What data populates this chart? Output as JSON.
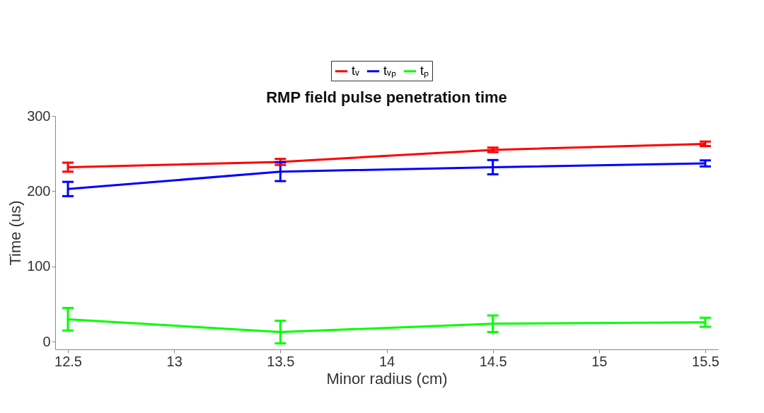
{
  "chart_data": {
    "type": "line",
    "title": "RMP field pulse penetration time",
    "xlabel": "Minor radius (cm)",
    "ylabel": "Time (us)",
    "x": [
      12.5,
      13.5,
      14.5,
      15.5
    ],
    "series": [
      {
        "name": "tᵥ",
        "color": "#ff0000",
        "values": [
          232,
          239,
          255,
          263
        ],
        "errors": [
          6,
          4,
          3,
          3
        ]
      },
      {
        "name": "tᵥₚ",
        "color": "#0000ff",
        "values": [
          203,
          226,
          232,
          237
        ],
        "errors": [
          9.5,
          12.5,
          9.5,
          4
        ]
      },
      {
        "name": "tₚ",
        "color": "#00ff00",
        "values": [
          30,
          13,
          24,
          26
        ],
        "errors": [
          15,
          15,
          11,
          6
        ]
      }
    ],
    "xlim": [
      12.44,
      15.56
    ],
    "xticks": [
      12.5,
      13,
      13.5,
      14,
      14.5,
      15,
      15.5
    ],
    "ylim": [
      -10,
      300
    ],
    "yticks": [
      0,
      100,
      200,
      300
    ],
    "grid": false,
    "legend": "top",
    "marker": "none",
    "line_style": "solid"
  }
}
